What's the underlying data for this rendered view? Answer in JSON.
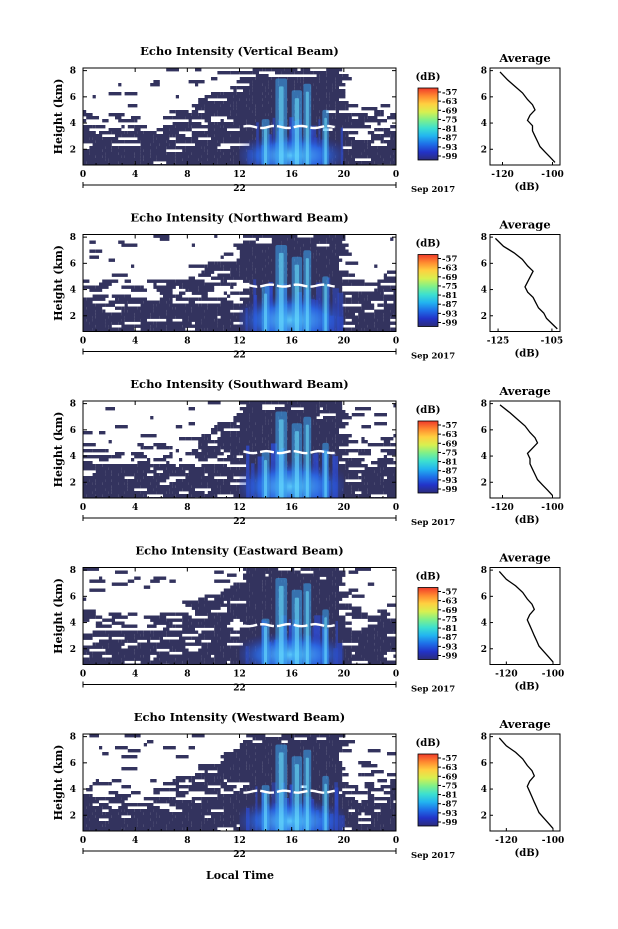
{
  "colorbar": {
    "unit_label": "(dB)",
    "tick_labels": [
      "-57",
      "-63",
      "-69",
      "-75",
      "-81",
      "-87",
      "-93",
      "-99"
    ],
    "colors": [
      "#2c2c7a",
      "#2233c8",
      "#1e6fe8",
      "#22b4f0",
      "#3ce0d0",
      "#7ff08a",
      "#d8f050",
      "#ffd040",
      "#ff8a30",
      "#f03a2a"
    ]
  },
  "date_label": "Sep 2017",
  "xlabel": "Local Time",
  "noise_color": "#33335e",
  "chart_data": [
    {
      "type": "heatmap",
      "title": "Echo Intensity (Vertical Beam)",
      "ylabel": "Height (km)",
      "x_ticks": [
        "0",
        "4",
        "8",
        "12",
        "16",
        "20",
        "0"
      ],
      "date_tick": "22",
      "y_ticks": [
        "8",
        "6",
        "4",
        "2"
      ],
      "xlim": [
        0,
        24
      ],
      "ylim": [
        0.8,
        8.2
      ],
      "bright_layer_km": 3.7,
      "average_profile": {
        "title": "Average",
        "xlabel": "(dB)",
        "x_ticks": [
          "-120",
          "-100"
        ],
        "y_ticks": [
          "8",
          "6",
          "4",
          "2"
        ],
        "xlim": [
          -125,
          -97
        ],
        "ylim": [
          0.8,
          8.2
        ],
        "height_km": [
          7.9,
          7.3,
          6.8,
          6.3,
          5.8,
          5.4,
          5.0,
          4.6,
          4.2,
          3.8,
          3.4,
          3.0,
          2.6,
          2.2,
          1.8,
          1.4,
          1.0
        ],
        "db": [
          -121,
          -118,
          -115,
          -112,
          -110,
          -108,
          -107,
          -109,
          -110,
          -108,
          -108,
          -107,
          -106,
          -105,
          -103,
          -101,
          -99
        ]
      }
    },
    {
      "type": "heatmap",
      "title": "Echo Intensity (Northward Beam)",
      "ylabel": "Height (km)",
      "x_ticks": [
        "0",
        "4",
        "8",
        "12",
        "16",
        "20",
        "0"
      ],
      "date_tick": "22",
      "y_ticks": [
        "8",
        "6",
        "4",
        "2"
      ],
      "xlim": [
        0,
        24
      ],
      "ylim": [
        0.8,
        8.2
      ],
      "bright_layer_km": 4.3,
      "average_profile": {
        "title": "Average",
        "xlabel": "(dB)",
        "x_ticks": [
          "-125",
          "-105"
        ],
        "y_ticks": [
          "8",
          "6",
          "4",
          "2"
        ],
        "xlim": [
          -128,
          -102
        ],
        "ylim": [
          0.8,
          8.2
        ],
        "height_km": [
          7.9,
          7.3,
          6.8,
          6.3,
          5.8,
          5.4,
          5.0,
          4.6,
          4.2,
          3.8,
          3.4,
          3.0,
          2.6,
          2.2,
          1.8,
          1.4,
          1.0
        ],
        "db": [
          -126,
          -123,
          -119,
          -116,
          -114,
          -112,
          -113,
          -114,
          -115,
          -114,
          -112,
          -111,
          -110,
          -108,
          -107,
          -105,
          -103
        ]
      }
    },
    {
      "type": "heatmap",
      "title": "Echo Intensity (Southward Beam)",
      "ylabel": "Height (km)",
      "x_ticks": [
        "0",
        "4",
        "8",
        "12",
        "16",
        "20",
        "0"
      ],
      "date_tick": "22",
      "y_ticks": [
        "8",
        "6",
        "4",
        "2"
      ],
      "xlim": [
        0,
        24
      ],
      "ylim": [
        0.8,
        8.2
      ],
      "bright_layer_km": 4.3,
      "average_profile": {
        "title": "Average",
        "xlabel": "(dB)",
        "x_ticks": [
          "-120",
          "-100"
        ],
        "y_ticks": [
          "8",
          "6",
          "4",
          "2"
        ],
        "xlim": [
          -125,
          -97
        ],
        "ylim": [
          0.8,
          8.2
        ],
        "height_km": [
          7.9,
          7.3,
          6.8,
          6.3,
          5.8,
          5.4,
          5.0,
          4.6,
          4.2,
          3.8,
          3.4,
          3.0,
          2.6,
          2.2,
          1.8,
          1.4,
          1.0
        ],
        "db": [
          -121,
          -117,
          -114,
          -111,
          -109,
          -107,
          -106,
          -108,
          -110,
          -109,
          -109,
          -108,
          -107,
          -106,
          -104,
          -102,
          -100
        ]
      }
    },
    {
      "type": "heatmap",
      "title": "Echo Intensity (Eastward Beam)",
      "ylabel": "Height (km)",
      "x_ticks": [
        "0",
        "4",
        "8",
        "12",
        "16",
        "20",
        "0"
      ],
      "date_tick": "22",
      "y_ticks": [
        "8",
        "6",
        "4",
        "2"
      ],
      "xlim": [
        0,
        24
      ],
      "ylim": [
        0.8,
        8.2
      ],
      "bright_layer_km": 3.8,
      "average_profile": {
        "title": "Average",
        "xlabel": "(dB)",
        "x_ticks": [
          "-120",
          "-100"
        ],
        "y_ticks": [
          "8",
          "6",
          "4",
          "2"
        ],
        "xlim": [
          -127,
          -97
        ],
        "ylim": [
          0.8,
          8.2
        ],
        "height_km": [
          7.9,
          7.3,
          6.8,
          6.3,
          5.8,
          5.4,
          5.0,
          4.6,
          4.2,
          3.8,
          3.4,
          3.0,
          2.6,
          2.2,
          1.8,
          1.4,
          1.0
        ],
        "db": [
          -123,
          -120,
          -116,
          -113,
          -111,
          -109,
          -108,
          -110,
          -111,
          -110,
          -109,
          -108,
          -107,
          -106,
          -104,
          -102,
          -100
        ]
      }
    },
    {
      "type": "heatmap",
      "title": "Echo Intensity (Westward Beam)",
      "ylabel": "Height (km)",
      "x_ticks": [
        "0",
        "4",
        "8",
        "12",
        "16",
        "20",
        "0"
      ],
      "date_tick": "22",
      "y_ticks": [
        "8",
        "6",
        "4",
        "2"
      ],
      "xlim": [
        0,
        24
      ],
      "ylim": [
        0.8,
        8.2
      ],
      "bright_layer_km": 3.8,
      "average_profile": {
        "title": "Average",
        "xlabel": "(dB)",
        "x_ticks": [
          "-120",
          "-100"
        ],
        "y_ticks": [
          "8",
          "6",
          "4",
          "2"
        ],
        "xlim": [
          -127,
          -97
        ],
        "ylim": [
          0.8,
          8.2
        ],
        "height_km": [
          7.9,
          7.3,
          6.8,
          6.3,
          5.8,
          5.4,
          5.0,
          4.6,
          4.2,
          3.8,
          3.4,
          3.0,
          2.6,
          2.2,
          1.8,
          1.4,
          1.0
        ],
        "db": [
          -123,
          -120,
          -116,
          -113,
          -111,
          -109,
          -108,
          -110,
          -111,
          -110,
          -109,
          -108,
          -107,
          -106,
          -104,
          -102,
          -100
        ]
      }
    }
  ]
}
